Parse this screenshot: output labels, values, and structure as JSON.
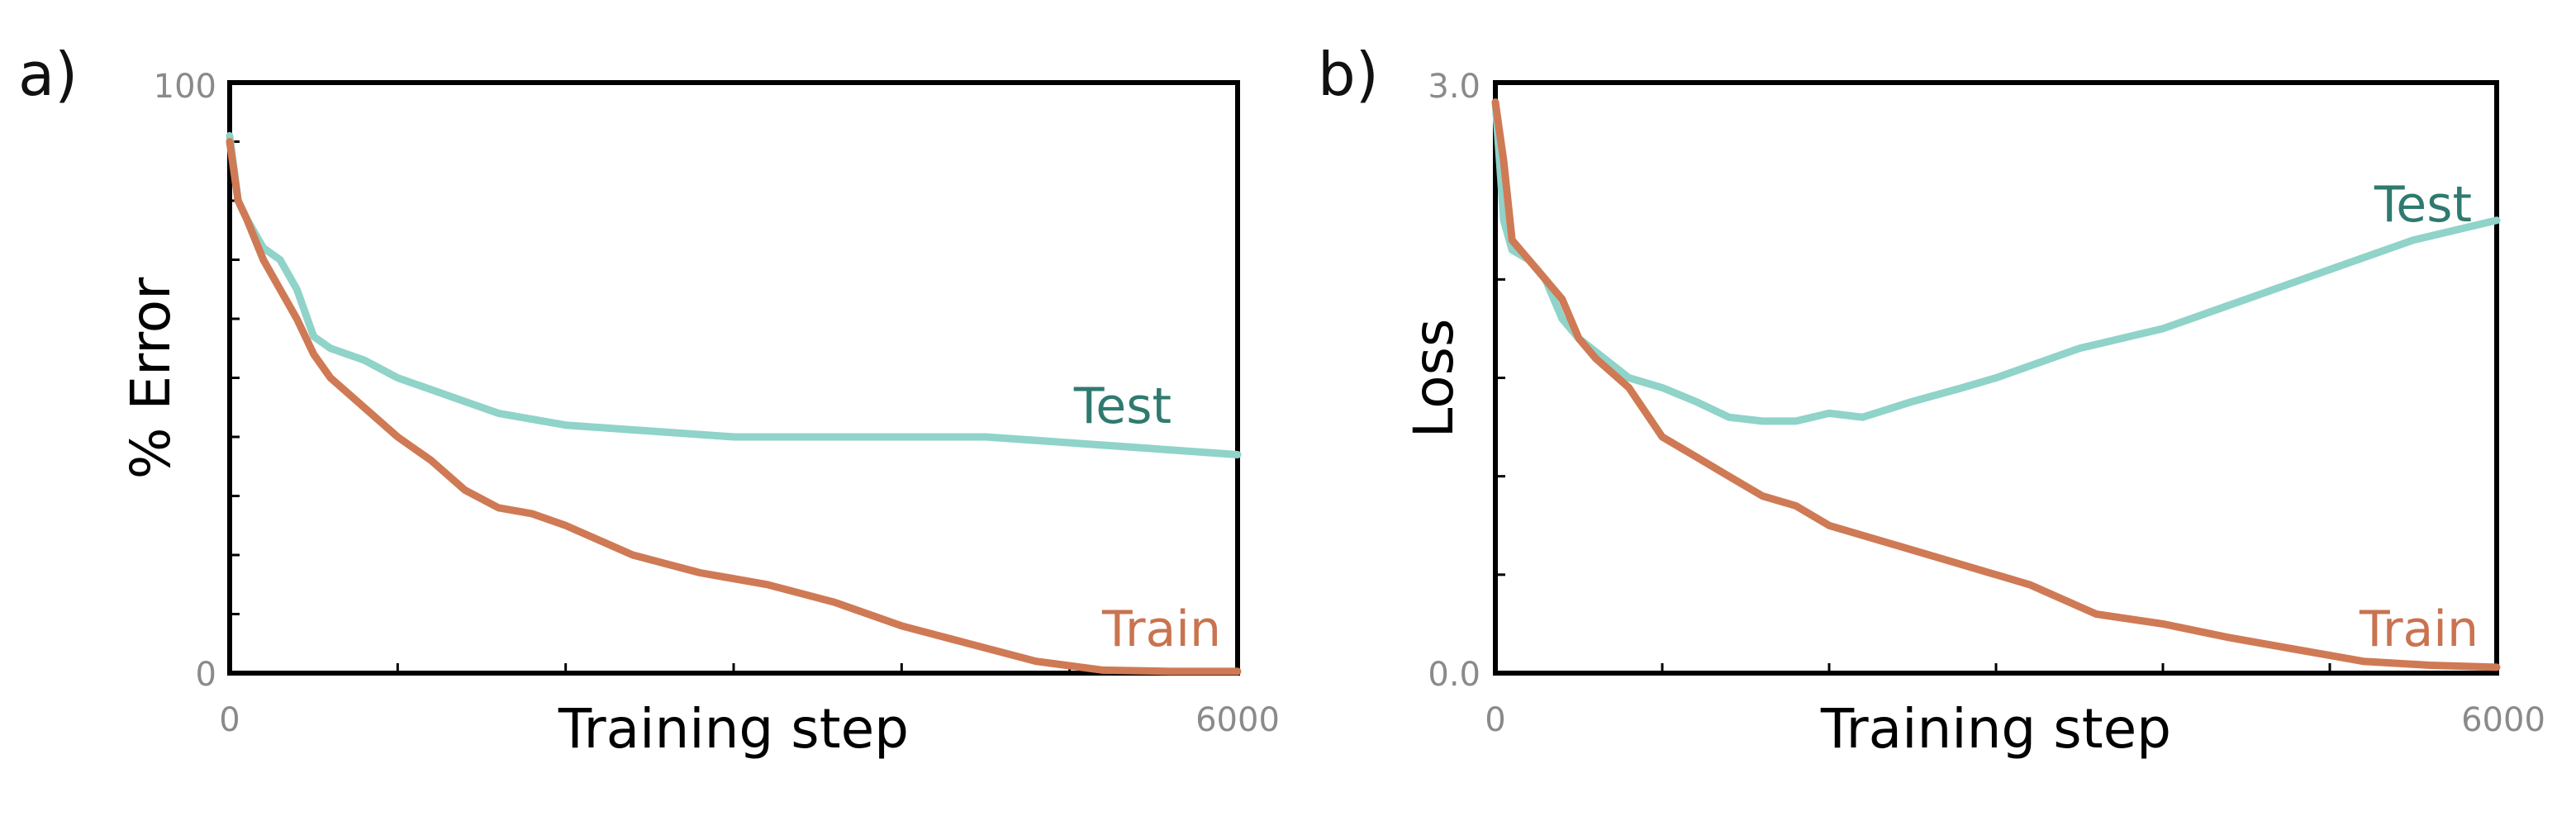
{
  "colors": {
    "test": "#8fd3c9",
    "test_label": "#2f7a70",
    "train": "#cf7a55",
    "train_label": "#c97350"
  },
  "chart_data": [
    {
      "type": "line",
      "panel_label": "a)",
      "xlabel": "Training step",
      "ylabel": "% Error",
      "xlim": [
        0,
        6000
      ],
      "ylim": [
        0,
        100
      ],
      "x_tick_labels": [
        "0",
        "6000"
      ],
      "y_tick_labels": [
        "0",
        "100"
      ],
      "x_minor_ticks": [
        0,
        1000,
        2000,
        3000,
        4000,
        5000,
        6000
      ],
      "y_minor_ticks": [
        0,
        10,
        20,
        30,
        40,
        50,
        60,
        70,
        80,
        90,
        100
      ],
      "series": [
        {
          "name": "Test",
          "x": [
            0,
            50,
            100,
            200,
            300,
            400,
            500,
            600,
            800,
            1000,
            1200,
            1400,
            1600,
            1800,
            2000,
            2500,
            3000,
            3500,
            4000,
            4500,
            5000,
            5500,
            6000
          ],
          "y": [
            91,
            80,
            77,
            72,
            70,
            65,
            57,
            55,
            53,
            50,
            48,
            46,
            44,
            43,
            42,
            41,
            40,
            40,
            40,
            40,
            39,
            38,
            37
          ]
        },
        {
          "name": "Train",
          "x": [
            0,
            50,
            100,
            200,
            300,
            400,
            500,
            600,
            800,
            1000,
            1200,
            1400,
            1600,
            1800,
            2000,
            2400,
            2800,
            3200,
            3600,
            4000,
            4400,
            4800,
            5200,
            5600,
            6000
          ],
          "y": [
            90,
            80,
            77,
            70,
            65,
            60,
            54,
            50,
            45,
            40,
            36,
            31,
            28,
            27,
            25,
            20,
            17,
            15,
            12,
            8,
            5,
            2,
            0.5,
            0.3,
            0.3
          ]
        }
      ]
    },
    {
      "type": "line",
      "panel_label": "b)",
      "xlabel": "Training step",
      "ylabel": "Loss",
      "xlim": [
        0,
        6000
      ],
      "ylim": [
        0,
        3.0
      ],
      "x_tick_labels": [
        "0",
        "6000"
      ],
      "y_tick_labels": [
        "0.0",
        "3.0"
      ],
      "x_minor_ticks": [
        0,
        1000,
        2000,
        3000,
        4000,
        5000,
        6000
      ],
      "y_minor_ticks": [
        0,
        0.5,
        1.0,
        1.5,
        2.0,
        2.5,
        3.0
      ],
      "series": [
        {
          "name": "Test",
          "x": [
            0,
            50,
            100,
            200,
            300,
            400,
            500,
            800,
            1000,
            1200,
            1400,
            1600,
            1800,
            2000,
            2200,
            2500,
            2800,
            3000,
            3500,
            4000,
            4500,
            5000,
            5500,
            6000
          ],
          "y": [
            2.9,
            2.3,
            2.15,
            2.1,
            2.0,
            1.8,
            1.7,
            1.5,
            1.45,
            1.38,
            1.3,
            1.28,
            1.28,
            1.32,
            1.3,
            1.38,
            1.45,
            1.5,
            1.65,
            1.75,
            1.9,
            2.05,
            2.2,
            2.3
          ]
        },
        {
          "name": "Train",
          "x": [
            0,
            50,
            100,
            200,
            300,
            400,
            500,
            600,
            800,
            1000,
            1200,
            1400,
            1600,
            1800,
            2000,
            2400,
            2800,
            3200,
            3600,
            4000,
            4400,
            4800,
            5200,
            5600,
            6000
          ],
          "y": [
            2.9,
            2.6,
            2.2,
            2.1,
            2.0,
            1.9,
            1.7,
            1.6,
            1.45,
            1.2,
            1.1,
            1.0,
            0.9,
            0.85,
            0.75,
            0.65,
            0.55,
            0.45,
            0.3,
            0.25,
            0.18,
            0.12,
            0.06,
            0.04,
            0.03
          ]
        }
      ]
    }
  ]
}
